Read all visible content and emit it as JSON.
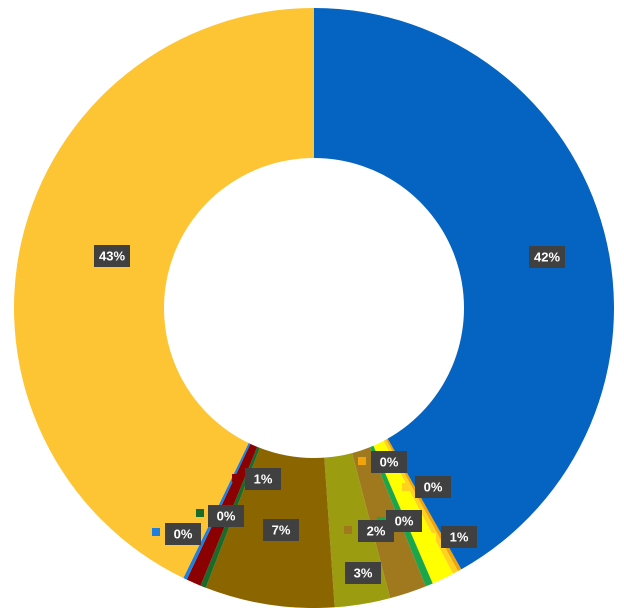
{
  "chart_data": {
    "type": "donut",
    "values": [
      42,
      0.2,
      0.3,
      1.2,
      0.4,
      2,
      3,
      7,
      0.3,
      0.8,
      0.2,
      43
    ],
    "value_labels": [
      "42%",
      "0%",
      "0%",
      "1%",
      "0%",
      "2%",
      "3%",
      "7%",
      "0%",
      "1%",
      "0%",
      "43%"
    ],
    "colors": [
      "#0563c1",
      "#f0a30a",
      "#ffd21f",
      "#ffff00",
      "#1aa64a",
      "#a0781e",
      "#9c9c10",
      "#8b6500",
      "#1a6b2a",
      "#8b0000",
      "#1f7fe0",
      "#fdc534"
    ]
  }
}
